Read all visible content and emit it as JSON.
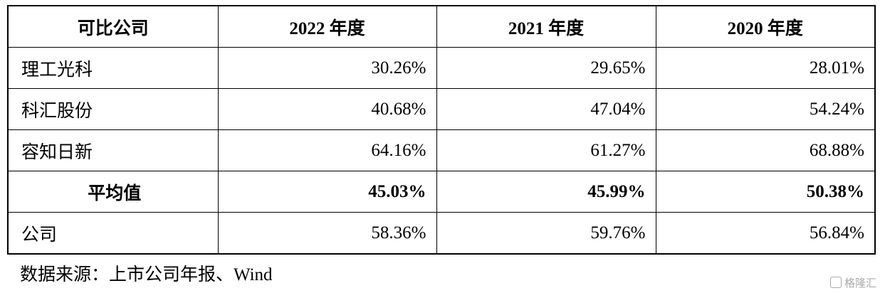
{
  "table": {
    "header": [
      "可比公司",
      "2022 年度",
      "2021 年度",
      "2020 年度"
    ],
    "rows": [
      [
        "理工光科",
        "30.26%",
        "29.65%",
        "28.01%"
      ],
      [
        "科汇股份",
        "40.68%",
        "47.04%",
        "54.24%"
      ],
      [
        "容知日新",
        "64.16%",
        "61.27%",
        "68.88%"
      ],
      [
        "平均值",
        "45.03%",
        "45.99%",
        "50.38%"
      ],
      [
        "公司",
        "58.36%",
        "59.76%",
        "56.84%"
      ]
    ],
    "bold_row": 3
  },
  "source": "数据来源：上市公司年报、Wind",
  "watermark": "格隆汇"
}
